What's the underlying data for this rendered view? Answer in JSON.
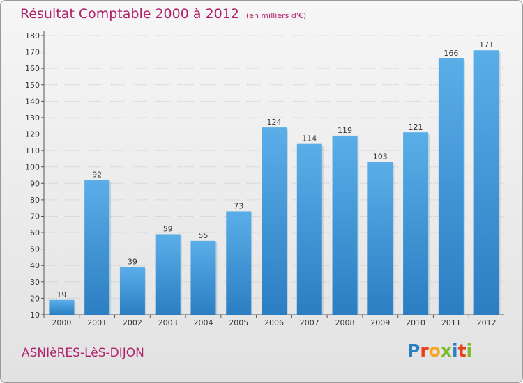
{
  "header": {
    "title": "Résultat Comptable 2000 à 2012",
    "subtitle": "(en milliers d'€)"
  },
  "footer": {
    "commune": "ASNIèRES-LèS-DIJON",
    "logo_letters": [
      "P",
      "r",
      "o",
      "x",
      "i",
      "t",
      "i"
    ]
  },
  "colors": {
    "title": "#b0206a",
    "bar_top": "#5aaee8",
    "bar_bottom": "#2b7ec2",
    "logo": [
      "#2a7fc1",
      "#e8401c",
      "#f5a623",
      "#7dbd2a",
      "#2a7fc1",
      "#e8401c",
      "#7dbd2a"
    ]
  },
  "chart_data": {
    "type": "bar",
    "title": "Résultat Comptable 2000 à 2012",
    "subtitle": "(en milliers d'€)",
    "categories": [
      "2000",
      "2001",
      "2002",
      "2003",
      "2004",
      "2005",
      "2006",
      "2007",
      "2008",
      "2009",
      "2010",
      "2011",
      "2012"
    ],
    "values": [
      19,
      92,
      39,
      59,
      55,
      73,
      124,
      114,
      119,
      103,
      121,
      166,
      171
    ],
    "ylim": [
      10,
      180
    ],
    "yticks": [
      10,
      20,
      30,
      40,
      50,
      60,
      70,
      80,
      90,
      100,
      110,
      120,
      130,
      140,
      150,
      160,
      170,
      180
    ],
    "grid": true,
    "data_labels": true
  }
}
